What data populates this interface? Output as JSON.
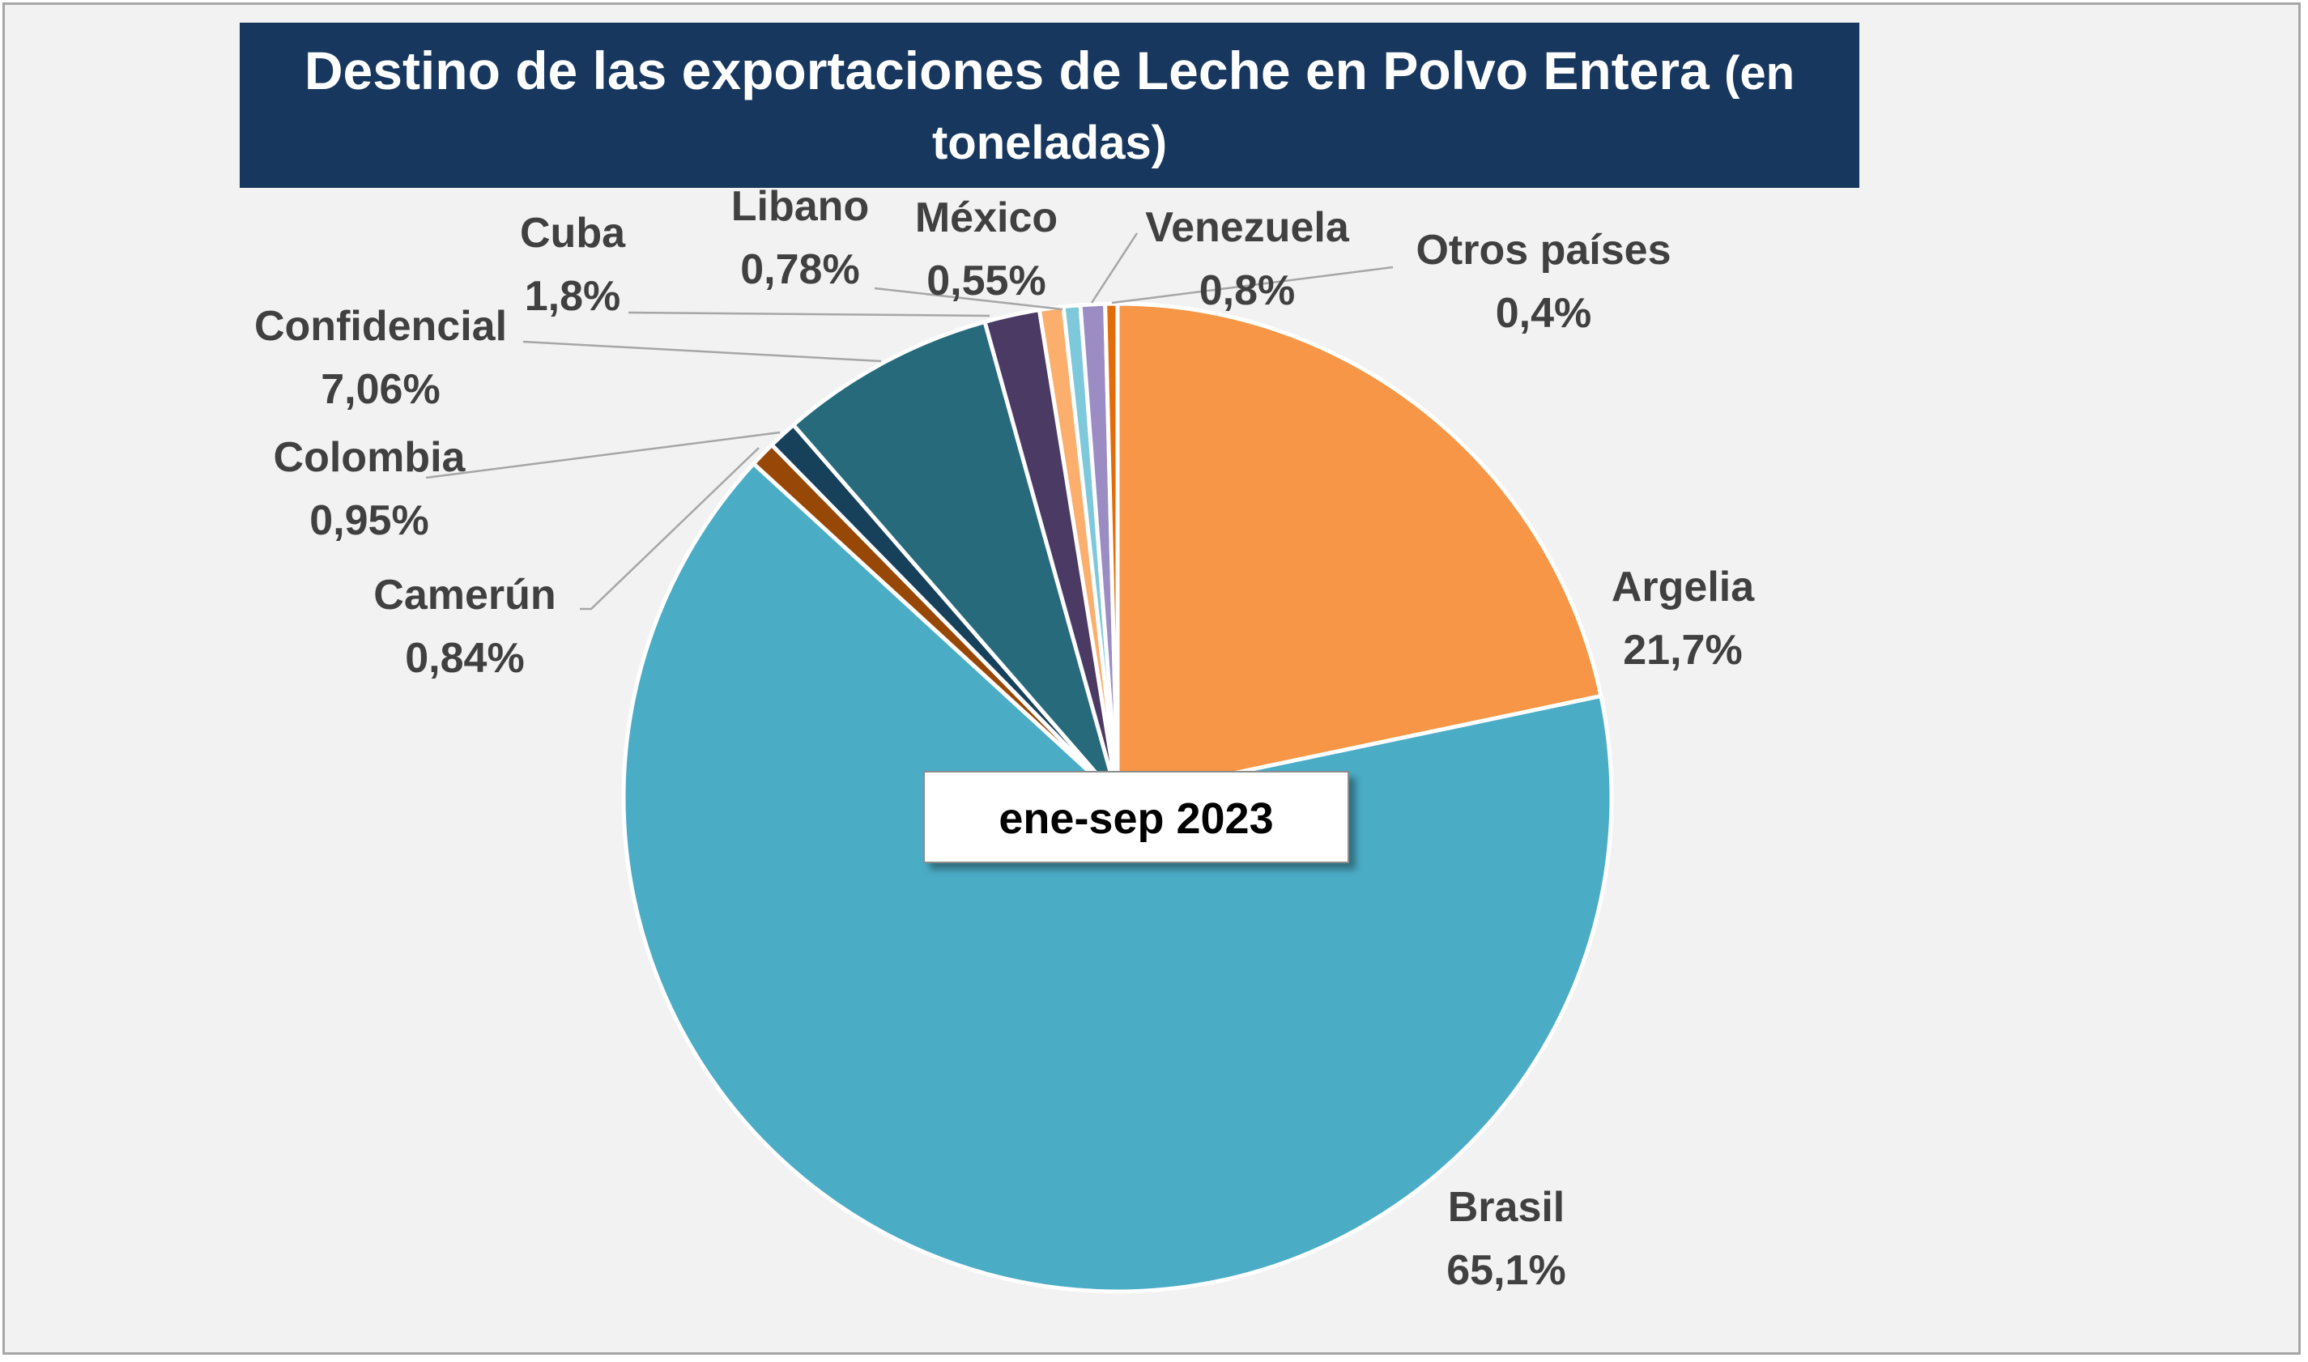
{
  "chart_data": {
    "type": "pie",
    "title_line1": "Destino de las exportaciones de Leche en Polvo Entera",
    "title_paren1": "(en",
    "title_line2": "toneladas)",
    "annotation": "ene-sep 2023",
    "slices": [
      {
        "name": "Argelia",
        "label": "21,7%",
        "value": 21.7,
        "color": "#f79646"
      },
      {
        "name": "Brasil",
        "label": "65,1%",
        "value": 65.1,
        "color": "#4bacc6"
      },
      {
        "name": "Camerún",
        "label": "0,84%",
        "value": 0.84,
        "color": "#974706"
      },
      {
        "name": "Colombia",
        "label": "0,95%",
        "value": 0.95,
        "color": "#17405a"
      },
      {
        "name": "Confidencial",
        "label": "7,06%",
        "value": 7.06,
        "color": "#276a7c"
      },
      {
        "name": "Cuba",
        "label": "1,8%",
        "value": 1.8,
        "color": "#4a3a64"
      },
      {
        "name": "Libano",
        "label": "0,78%",
        "value": 0.78,
        "color": "#fcae6d"
      },
      {
        "name": "México",
        "label": "0,55%",
        "value": 0.55,
        "color": "#7ec8dc"
      },
      {
        "name": "Venezuela",
        "label": "0,8%",
        "value": 0.8,
        "color": "#9b8cc4"
      },
      {
        "name": "Otros países",
        "label": "0,4%",
        "value": 0.4,
        "color": "#e36c0a"
      }
    ]
  }
}
